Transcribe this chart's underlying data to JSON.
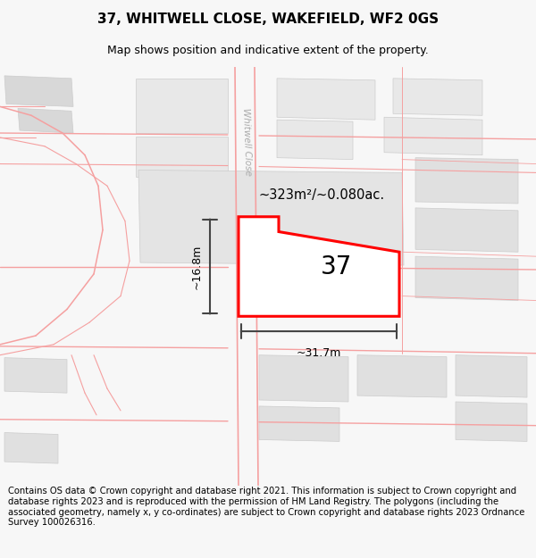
{
  "title": "37, WHITWELL CLOSE, WAKEFIELD, WF2 0GS",
  "subtitle": "Map shows position and indicative extent of the property.",
  "area_text": "~323m²/~0.080ac.",
  "width_label": "~31.7m",
  "height_label": "~16.8m",
  "number_label": "37",
  "footer_text": "Contains OS data © Crown copyright and database right 2021. This information is subject to Crown copyright and database rights 2023 and is reproduced with the permission of HM Land Registry. The polygons (including the associated geometry, namely x, y co-ordinates) are subject to Crown copyright and database rights 2023 Ordnance Survey 100026316.",
  "bg_color": "#f7f7f7",
  "map_bg": "#ffffff",
  "plot_color": "#ff0000",
  "plot_fill": "#ffffff",
  "bldg_fill": "#d8d8d8",
  "bldg_edge": "#cccccc",
  "road_color": "#f5a0a0",
  "road_lw": 0.8,
  "dim_color": "#444444",
  "title_fontsize": 11,
  "subtitle_fontsize": 9,
  "footer_fontsize": 7.2,
  "road_label_color": "#aaaaaa"
}
